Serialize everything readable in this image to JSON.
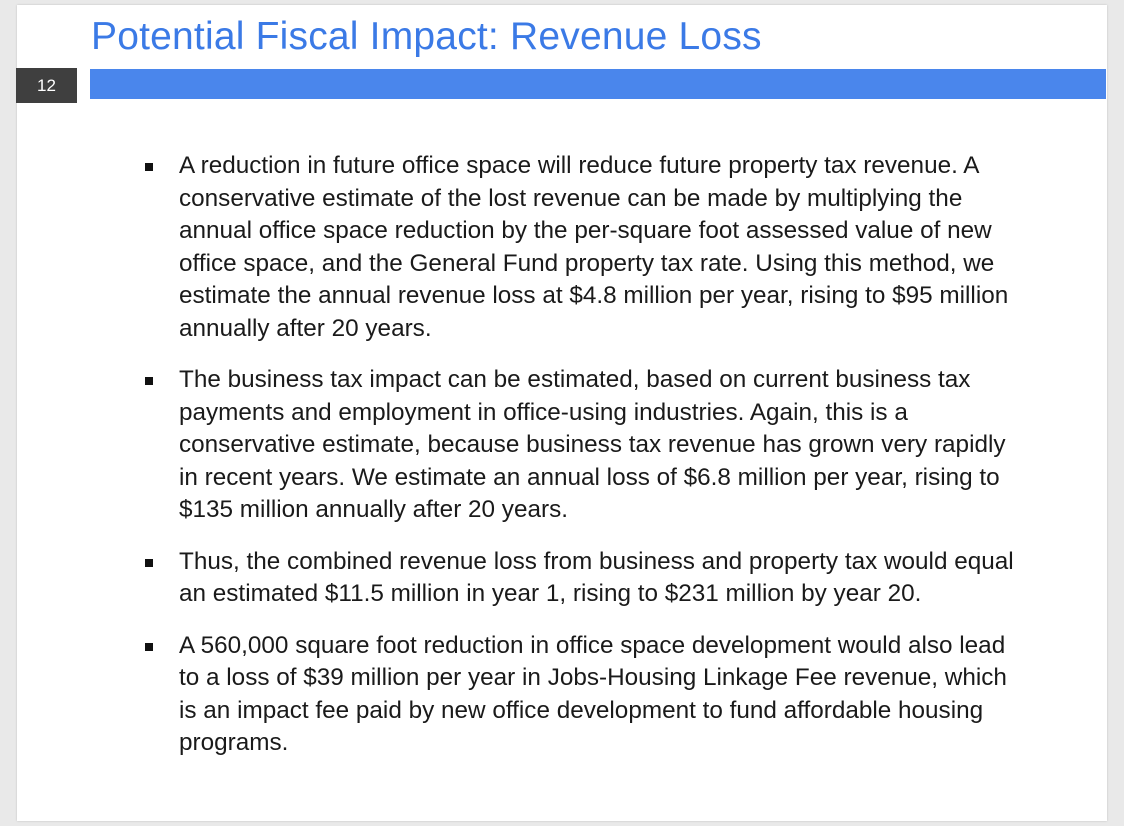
{
  "slide": {
    "title": "Potential Fiscal Impact: Revenue Loss",
    "page_number": "12",
    "colors": {
      "title": "#3b7ae6",
      "title_bar": "#4a86ec",
      "page_badge": "#3f3f3f"
    }
  },
  "bullets": [
    {
      "text": "A reduction in future office space will reduce future property tax revenue. A conservative estimate of the lost revenue can be made by multiplying the annual office space reduction by the per-square foot assessed value of new office space, and the General Fund property tax rate. Using this method, we estimate the annual revenue loss at $4.8 million per year, rising to $95 million annually after 20 years."
    },
    {
      "text": "The business tax impact can be estimated, based on current business tax payments and employment in office-using industries. Again, this is a conservative estimate, because business tax revenue has grown very rapidly in recent years. We estimate an annual loss of $6.8 million per year, rising to $135 million annually after 20 years."
    },
    {
      "text": "Thus, the combined revenue loss from business and property tax would equal an estimated $11.5 million in year 1, rising to $231 million by year 20."
    },
    {
      "text": "A 560,000 square foot reduction in office space development would also lead to a loss of $39 million per year in Jobs-Housing Linkage Fee revenue, which is an impact fee paid by new office development to fund affordable housing programs."
    }
  ]
}
